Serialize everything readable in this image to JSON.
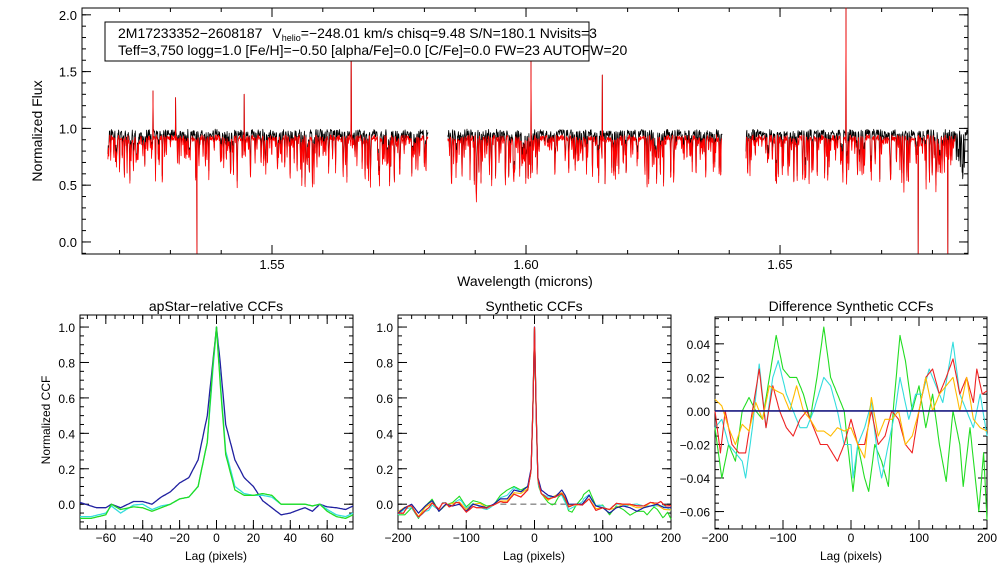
{
  "chart_data": [
    {
      "type": "line",
      "id": "spectrum",
      "xlabel": "Wavelength (microns)",
      "ylabel": "Normalized Flux",
      "xlim": [
        1.5126,
        1.687
      ],
      "ylim": [
        -0.106,
        2.06
      ],
      "xticks": [
        1.55,
        1.6,
        1.65
      ],
      "xtick_labels": [
        "1.55",
        "1.60",
        "1.65"
      ],
      "yticks": [
        0.0,
        0.5,
        1.0,
        1.5,
        2.0
      ],
      "ytick_labels": [
        "0.0",
        "0.5",
        "1.0",
        "1.5",
        "2.0"
      ],
      "annotation": {
        "line1_star": "2M17233352−2608187",
        "line1_v": "V",
        "line1_v_sub": "helio",
        "line1_rest": "=−248.01 km/s  chisq=9.48  S/N=180.1  Nvisits=3",
        "line2": "Teff=3,750 logg=1.0 [Fe/H]=−0.50 [alpha/Fe]=0.0 [C/Fe]=0.0 FW=23 AUTOFW=20"
      },
      "series": [
        {
          "name": "observed",
          "color": "#000000",
          "continuum": 0.93,
          "noise": 0.04
        },
        {
          "name": "model",
          "color": "#ff0000",
          "continuum": 0.92,
          "noise": 0.035
        }
      ],
      "segments": [
        [
          1.5177,
          1.5807
        ],
        [
          1.5846,
          1.6386
        ],
        [
          1.6433,
          1.687
        ]
      ],
      "spikes": [
        {
          "x": 1.5266,
          "y": 1.33
        },
        {
          "x": 1.531,
          "y": 1.27
        },
        {
          "x": 1.5352,
          "y": -0.1
        },
        {
          "x": 1.5445,
          "y": 1.3
        },
        {
          "x": 1.5656,
          "y": 1.65
        },
        {
          "x": 1.601,
          "y": 1.6
        },
        {
          "x": 1.615,
          "y": 1.47
        },
        {
          "x": 1.663,
          "y": 2.06
        },
        {
          "x": 1.6772,
          "y": 2.06
        },
        {
          "x": 1.6772,
          "y": -0.1
        },
        {
          "x": 1.683,
          "y": 2.06
        },
        {
          "x": 1.683,
          "y": -0.1
        }
      ]
    },
    {
      "type": "line",
      "id": "apstar",
      "title": "apStar−relative CCFs",
      "xlabel": "Lag (pixels)",
      "ylabel": "Normalized CCF",
      "xlim": [
        -74,
        74
      ],
      "ylim": [
        -0.14,
        1.068
      ],
      "xticks": [
        -60,
        -40,
        -20,
        0,
        20,
        40,
        60
      ],
      "xtick_labels": [
        "−60",
        "−40",
        "−20",
        "0",
        "20",
        "40",
        "60"
      ],
      "yticks": [
        0.0,
        0.2,
        0.4,
        0.6,
        0.8,
        1.0
      ],
      "ytick_labels": [
        "0.0",
        "0.2",
        "0.4",
        "0.6",
        "0.8",
        "1.0"
      ],
      "series": [
        {
          "name": "visit-1",
          "color": "#2020a0",
          "x": [
            -74,
            -65,
            -60,
            -57,
            -52,
            -45,
            -40,
            -35,
            -30,
            -25,
            -20,
            -15,
            -10,
            -5,
            -2,
            0,
            2,
            5,
            10,
            15,
            20,
            25,
            30,
            35,
            40,
            45,
            48,
            52,
            56,
            60,
            65,
            70,
            74
          ],
          "y": [
            0.01,
            -0.02,
            -0.02,
            0.0,
            -0.02,
            0.015,
            0.015,
            0.0,
            0.04,
            0.07,
            0.12,
            0.15,
            0.25,
            0.5,
            0.8,
            1.0,
            0.8,
            0.45,
            0.25,
            0.15,
            0.1,
            0.02,
            -0.02,
            -0.06,
            -0.05,
            -0.03,
            -0.02,
            -0.04,
            0.0,
            -0.015,
            -0.02,
            -0.03,
            -0.01
          ]
        },
        {
          "name": "visit-2",
          "color": "#33dddd",
          "x": [
            -74,
            -68,
            -60,
            -57,
            -52,
            -45,
            -40,
            -35,
            -30,
            -25,
            -20,
            -15,
            -10,
            -5,
            -2,
            0,
            2,
            5,
            10,
            15,
            20,
            25,
            30,
            35,
            40,
            48,
            52,
            56,
            60,
            65,
            70,
            74
          ],
          "y": [
            -0.07,
            -0.07,
            -0.05,
            -0.01,
            -0.05,
            -0.005,
            0.0,
            -0.03,
            -0.01,
            0.0,
            0.03,
            0.04,
            0.1,
            0.35,
            0.75,
            1.0,
            0.7,
            0.3,
            0.1,
            0.06,
            0.05,
            0.05,
            0.04,
            0.0,
            0.0,
            0.0,
            -0.01,
            0.0,
            -0.03,
            -0.06,
            -0.07,
            -0.05
          ]
        },
        {
          "name": "visit-3",
          "color": "#22dd22",
          "x": [
            -74,
            -68,
            -60,
            -57,
            -52,
            -45,
            -40,
            -35,
            -30,
            -25,
            -20,
            -15,
            -10,
            -5,
            -2,
            0,
            2,
            5,
            10,
            15,
            20,
            25,
            30,
            35,
            40,
            48,
            52,
            56,
            60,
            65,
            70,
            74
          ],
          "y": [
            -0.08,
            -0.08,
            -0.06,
            0.0,
            -0.03,
            -0.015,
            -0.02,
            -0.04,
            -0.02,
            0.0,
            0.03,
            0.04,
            0.1,
            0.35,
            0.78,
            1.0,
            0.68,
            0.28,
            0.08,
            0.05,
            0.05,
            0.06,
            0.05,
            0.0,
            0.0,
            0.0,
            -0.01,
            0.0,
            -0.04,
            -0.07,
            -0.08,
            -0.06
          ]
        }
      ]
    },
    {
      "type": "line",
      "id": "synthetic",
      "title": "Synthetic CCFs",
      "xlabel": "Lag (pixels)",
      "xlim": [
        -200,
        200
      ],
      "ylim": [
        -0.14,
        1.068
      ],
      "xticks": [
        -200,
        -100,
        0,
        100,
        200
      ],
      "xtick_labels": [
        "−200",
        "−100",
        "0",
        "100",
        "200"
      ],
      "yticks": [
        0.0,
        0.2,
        0.4,
        0.6,
        0.8,
        1.0
      ],
      "ytick_labels": [
        "0.0",
        "0.2",
        "0.4",
        "0.6",
        "0.8",
        "1.0"
      ],
      "reference_line": {
        "y": 0,
        "xrange": [
          -50,
          50
        ],
        "style": "dashed",
        "color": "#888888"
      },
      "base": {
        "name": "best-synthetic",
        "color": "#1a1aa0",
        "x": [
          -200,
          -190,
          -180,
          -170,
          -160,
          -150,
          -140,
          -130,
          -120,
          -110,
          -100,
          -90,
          -80,
          -70,
          -60,
          -50,
          -40,
          -30,
          -20,
          -10,
          -5,
          -2,
          0,
          2,
          5,
          10,
          20,
          30,
          40,
          45,
          50,
          60,
          70,
          80,
          90,
          100,
          110,
          120,
          130,
          140,
          150,
          160,
          170,
          180,
          190,
          200
        ],
        "y": [
          -0.05,
          -0.02,
          0.0,
          -0.05,
          -0.01,
          0.02,
          -0.04,
          0.0,
          -0.01,
          0.0,
          -0.04,
          0.0,
          -0.01,
          -0.02,
          0.0,
          0.03,
          0.03,
          0.08,
          0.07,
          0.1,
          0.2,
          0.6,
          1.0,
          0.6,
          0.15,
          0.08,
          0.05,
          0.04,
          0.08,
          0.05,
          0.0,
          0.0,
          0.0,
          0.05,
          -0.01,
          -0.02,
          -0.05,
          -0.02,
          -0.01,
          -0.02,
          -0.04,
          -0.02,
          -0.01,
          0.0,
          -0.02,
          -0.02
        ]
      },
      "note_series": "other curves = base + corresponding difference series"
    },
    {
      "type": "line",
      "id": "difference",
      "title": "Difference Synthetic CCFs",
      "xlabel": "Lag (pixels)",
      "xlim": [
        -200,
        200
      ],
      "ylim": [
        -0.0704,
        0.056
      ],
      "xticks": [
        -200,
        -100,
        0,
        100,
        200
      ],
      "xtick_labels": [
        "−200",
        "−100",
        "0",
        "100",
        "200"
      ],
      "yticks": [
        -0.06,
        -0.04,
        -0.02,
        0.0,
        0.02,
        0.04
      ],
      "ytick_labels": [
        "−0.06",
        "−0.04",
        "−0.02",
        "0.00",
        "0.02",
        "0.04"
      ],
      "series": [
        {
          "name": "reference",
          "color": "#1a1a80",
          "x": [
            -200,
            200
          ],
          "y": [
            0,
            0
          ]
        },
        {
          "name": "green",
          "color": "#22dd22",
          "x": [
            -200,
            -190,
            -180,
            -170,
            -160,
            -150,
            -140,
            -130,
            -120,
            -110,
            -100,
            -90,
            -80,
            -70,
            -60,
            -50,
            -40,
            -30,
            -20,
            -10,
            -5,
            3,
            10,
            20,
            26,
            35,
            45,
            55,
            62,
            72,
            80,
            90,
            100,
            110,
            120,
            130,
            140,
            150,
            160,
            165,
            175,
            188,
            195,
            200
          ],
          "y": [
            -0.01,
            -0.04,
            -0.02,
            -0.03,
            0.0,
            0.008,
            0.0,
            -0.005,
            0.02,
            0.045,
            0.025,
            0.02,
            0.02,
            0.01,
            -0.005,
            0.02,
            0.05,
            0.02,
            0.01,
            0.0,
            -0.02,
            -0.048,
            -0.02,
            -0.04,
            -0.048,
            -0.02,
            -0.03,
            -0.045,
            0.0,
            0.045,
            0.03,
            0.0,
            0.015,
            -0.01,
            0.01,
            -0.02,
            -0.042,
            0.0,
            -0.02,
            -0.045,
            -0.01,
            -0.06,
            -0.025,
            -0.065
          ]
        },
        {
          "name": "cyan",
          "color": "#33dddd",
          "x": [
            -200,
            -190,
            -180,
            -170,
            -160,
            -155,
            -145,
            -135,
            -125,
            -115,
            -107,
            -95,
            -85,
            -75,
            -65,
            -55,
            -40,
            -30,
            -20,
            -10,
            0,
            3,
            10,
            20,
            30,
            40,
            45,
            55,
            65,
            72,
            85,
            95,
            105,
            115,
            125,
            135,
            150,
            160,
            170,
            180,
            190,
            200
          ],
          "y": [
            -0.01,
            -0.005,
            -0.02,
            -0.025,
            -0.03,
            -0.04,
            -0.01,
            0.028,
            -0.01,
            0.02,
            0.03,
            0.01,
            0.0,
            -0.01,
            -0.01,
            0.0,
            0.02,
            0.015,
            0.0,
            -0.02,
            -0.02,
            -0.04,
            -0.02,
            -0.01,
            0.005,
            -0.03,
            -0.04,
            -0.02,
            0.0,
            0.02,
            -0.005,
            0.01,
            0.01,
            0.025,
            0.015,
            0.005,
            0.041,
            0.01,
            0.0,
            -0.01,
            0.01,
            -0.015
          ]
        },
        {
          "name": "red",
          "color": "#ee2222",
          "x": [
            -200,
            -192,
            -185,
            -175,
            -165,
            -155,
            -145,
            -135,
            -125,
            -115,
            -105,
            -95,
            -85,
            -75,
            -65,
            -55,
            -45,
            -35,
            -20,
            -10,
            0,
            10,
            20,
            30,
            40,
            50,
            60,
            70,
            80,
            90,
            100,
            110,
            120,
            130,
            140,
            150,
            160,
            170,
            180,
            185,
            193,
            200
          ],
          "y": [
            0.0,
            -0.025,
            0.0,
            -0.02,
            -0.025,
            -0.025,
            0.0,
            0.025,
            -0.01,
            0.015,
            0.0,
            -0.01,
            -0.015,
            -0.005,
            0.0,
            -0.01,
            -0.02,
            -0.02,
            -0.03,
            -0.02,
            -0.005,
            -0.02,
            -0.02,
            0.0,
            -0.02,
            -0.015,
            0.0,
            -0.005,
            -0.02,
            -0.025,
            0.0,
            0.02,
            0.025,
            0.01,
            0.02,
            0.031,
            0.01,
            0.02,
            0.005,
            0.025,
            0.01,
            0.012
          ]
        },
        {
          "name": "orange",
          "color": "#ffbb00",
          "x": [
            -200,
            -190,
            -180,
            -170,
            -160,
            -150,
            -140,
            -130,
            -120,
            -110,
            -100,
            -90,
            -80,
            -70,
            -60,
            -50,
            -40,
            -30,
            -20,
            -10,
            0,
            10,
            20,
            30,
            40,
            50,
            60,
            70,
            80,
            90,
            100,
            110,
            120,
            130,
            140,
            150,
            160,
            170,
            180,
            190,
            200
          ],
          "y": [
            0.007,
            0.003,
            -0.01,
            -0.02,
            -0.008,
            -0.012,
            0.005,
            -0.005,
            0.015,
            0.012,
            0.01,
            0.0,
            0.015,
            0.0,
            -0.005,
            -0.012,
            -0.012,
            -0.015,
            -0.01,
            -0.012,
            -0.01,
            -0.02,
            -0.028,
            0.008,
            -0.015,
            -0.005,
            -0.005,
            0.0,
            -0.02,
            -0.015,
            0.0,
            0.02,
            0.0,
            0.01,
            0.015,
            0.02,
            0.0,
            0.02,
            -0.005,
            -0.01,
            -0.012
          ]
        }
      ]
    }
  ]
}
